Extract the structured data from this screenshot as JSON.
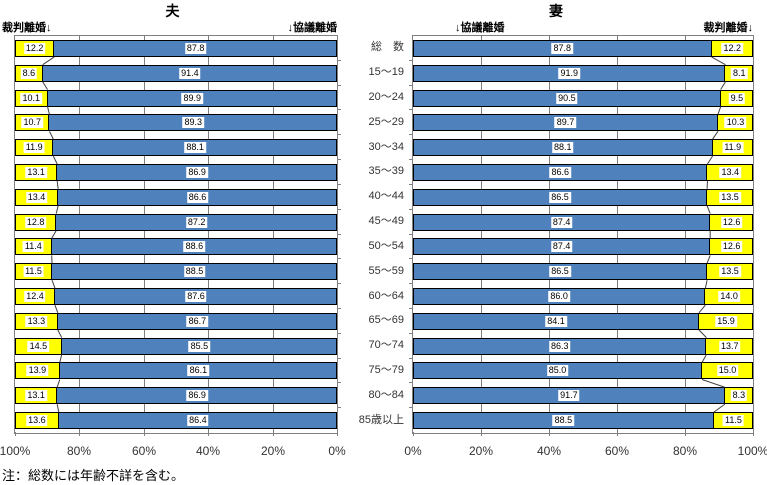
{
  "figure": {
    "note": "注：総数には年齢不詳を含む。"
  },
  "charts": [
    {
      "title": "夫",
      "header_left": "裁判離婚↓",
      "header_right": "↓協議離婚"
    },
    {
      "title": "妻",
      "header_left": "↓協議離婚",
      "header_right": "裁判離婚↓"
    }
  ],
  "categories": [
    "総　数",
    "15〜19",
    "20〜24",
    "25〜29",
    "30〜34",
    "35〜39",
    "40〜44",
    "45〜49",
    "50〜54",
    "55〜59",
    "60〜64",
    "65〜69",
    "70〜74",
    "75〜79",
    "80〜84",
    "85歳以上"
  ],
  "colors": {
    "kyogi_blue": "#4F81BD",
    "saiban_yellow": "#FFFF00"
  },
  "chart_data": [
    {
      "type": "bar",
      "variant": "100%-stacked-horizontal",
      "title": "夫",
      "axis_reversed": true,
      "xlim": [
        0,
        100
      ],
      "x_ticks": [
        "100%",
        "80%",
        "60%",
        "40%",
        "20%",
        "0%"
      ],
      "categories": [
        "総　数",
        "15〜19",
        "20〜24",
        "25〜29",
        "30〜34",
        "35〜39",
        "40〜44",
        "45〜49",
        "50〜54",
        "55〜59",
        "60〜64",
        "65〜69",
        "70〜74",
        "75〜79",
        "80〜84",
        "85歳以上"
      ],
      "series": [
        {
          "name": "協議離婚",
          "color": "#4F81BD",
          "values": [
            87.8,
            91.4,
            89.9,
            89.3,
            88.1,
            86.9,
            86.6,
            87.2,
            88.6,
            88.5,
            87.6,
            86.7,
            85.5,
            86.1,
            86.9,
            86.4
          ]
        },
        {
          "name": "裁判離婚",
          "color": "#FFFF00",
          "values": [
            12.2,
            8.6,
            10.1,
            10.7,
            11.9,
            13.1,
            13.4,
            12.8,
            11.4,
            11.5,
            12.4,
            13.3,
            14.5,
            13.9,
            13.1,
            13.6
          ]
        }
      ]
    },
    {
      "type": "bar",
      "variant": "100%-stacked-horizontal",
      "title": "妻",
      "axis_reversed": false,
      "xlim": [
        0,
        100
      ],
      "x_ticks": [
        "0%",
        "20%",
        "40%",
        "60%",
        "80%",
        "100%"
      ],
      "categories": [
        "総　数",
        "15〜19",
        "20〜24",
        "25〜29",
        "30〜34",
        "35〜39",
        "40〜44",
        "45〜49",
        "50〜54",
        "55〜59",
        "60〜64",
        "65〜69",
        "70〜74",
        "75〜79",
        "80〜84",
        "85歳以上"
      ],
      "series": [
        {
          "name": "協議離婚",
          "color": "#4F81BD",
          "values": [
            87.8,
            91.9,
            90.5,
            89.7,
            88.1,
            86.6,
            86.5,
            87.4,
            87.4,
            86.5,
            86.0,
            84.1,
            86.3,
            85.0,
            91.7,
            88.5
          ]
        },
        {
          "name": "裁判離婚",
          "color": "#FFFF00",
          "values": [
            12.2,
            8.1,
            9.5,
            10.3,
            11.9,
            13.4,
            13.5,
            12.6,
            12.6,
            13.5,
            14.0,
            15.9,
            13.7,
            15.0,
            8.3,
            11.5
          ]
        }
      ]
    }
  ]
}
